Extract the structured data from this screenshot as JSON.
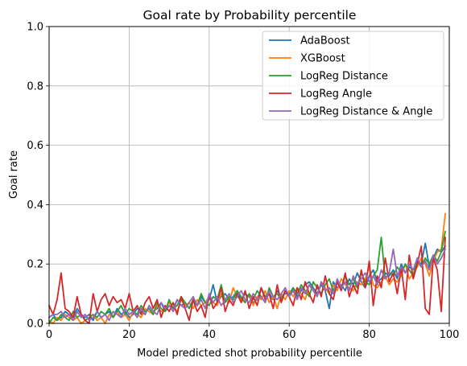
{
  "chart_data": {
    "type": "line",
    "title": "Goal rate by Probability percentile",
    "xlabel": "Model predicted shot probability percentile",
    "ylabel": "Goal rate",
    "xlim": [
      0,
      100
    ],
    "ylim": [
      0,
      1.0
    ],
    "xticks": [
      "0",
      "20",
      "40",
      "60",
      "80",
      "100"
    ],
    "yticks": [
      "0.0",
      "0.2",
      "0.4",
      "0.6",
      "0.8",
      "1.0"
    ],
    "grid": true,
    "legend_position": "top-right",
    "x": [
      0,
      1,
      2,
      3,
      4,
      5,
      6,
      7,
      8,
      9,
      10,
      11,
      12,
      13,
      14,
      15,
      16,
      17,
      18,
      19,
      20,
      21,
      22,
      23,
      24,
      25,
      26,
      27,
      28,
      29,
      30,
      31,
      32,
      33,
      34,
      35,
      36,
      37,
      38,
      39,
      40,
      41,
      42,
      43,
      44,
      45,
      46,
      47,
      48,
      49,
      50,
      51,
      52,
      53,
      54,
      55,
      56,
      57,
      58,
      59,
      60,
      61,
      62,
      63,
      64,
      65,
      66,
      67,
      68,
      69,
      70,
      71,
      72,
      73,
      74,
      75,
      76,
      77,
      78,
      79,
      80,
      81,
      82,
      83,
      84,
      85,
      86,
      87,
      88,
      89,
      90,
      91,
      92,
      93,
      94,
      95,
      96,
      97,
      98,
      99
    ],
    "series": [
      {
        "name": "AdaBoost",
        "color": "#1f77b4",
        "values": [
          0.02,
          0.03,
          0.01,
          0.02,
          0.04,
          0.03,
          0.02,
          0.05,
          0.03,
          0.02,
          0.03,
          0.01,
          0.04,
          0.02,
          0.03,
          0.04,
          0.02,
          0.05,
          0.03,
          0.04,
          0.02,
          0.03,
          0.05,
          0.04,
          0.03,
          0.06,
          0.04,
          0.05,
          0.07,
          0.04,
          0.06,
          0.05,
          0.08,
          0.06,
          0.07,
          0.05,
          0.08,
          0.06,
          0.09,
          0.07,
          0.08,
          0.13,
          0.07,
          0.09,
          0.1,
          0.08,
          0.09,
          0.11,
          0.08,
          0.1,
          0.09,
          0.07,
          0.08,
          0.12,
          0.09,
          0.1,
          0.08,
          0.11,
          0.09,
          0.1,
          0.1,
          0.12,
          0.09,
          0.11,
          0.13,
          0.14,
          0.12,
          0.1,
          0.13,
          0.11,
          0.05,
          0.14,
          0.12,
          0.13,
          0.11,
          0.15,
          0.13,
          0.17,
          0.14,
          0.12,
          0.16,
          0.18,
          0.14,
          0.15,
          0.17,
          0.16,
          0.18,
          0.15,
          0.2,
          0.17,
          0.19,
          0.18,
          0.21,
          0.2,
          0.27,
          0.19,
          0.22,
          0.25,
          0.24,
          0.26
        ]
      },
      {
        "name": "XGBoost",
        "color": "#ff7f0e",
        "values": [
          0.01,
          0.0,
          0.02,
          0.01,
          0.03,
          0.02,
          0.01,
          0.02,
          0.0,
          0.01,
          0.02,
          0.03,
          0.01,
          0.02,
          0.0,
          0.03,
          0.02,
          0.04,
          0.02,
          0.03,
          0.01,
          0.04,
          0.03,
          0.02,
          0.05,
          0.04,
          0.03,
          0.06,
          0.04,
          0.05,
          0.07,
          0.05,
          0.04,
          0.08,
          0.06,
          0.07,
          0.05,
          0.08,
          0.06,
          0.07,
          0.09,
          0.07,
          0.06,
          0.1,
          0.08,
          0.07,
          0.12,
          0.09,
          0.08,
          0.07,
          0.1,
          0.06,
          0.09,
          0.08,
          0.11,
          0.07,
          0.09,
          0.05,
          0.1,
          0.08,
          0.11,
          0.09,
          0.12,
          0.1,
          0.08,
          0.13,
          0.11,
          0.09,
          0.14,
          0.12,
          0.1,
          0.13,
          0.11,
          0.15,
          0.13,
          0.12,
          0.11,
          0.14,
          0.13,
          0.15,
          0.19,
          0.13,
          0.12,
          0.14,
          0.16,
          0.13,
          0.15,
          0.14,
          0.16,
          0.2,
          0.15,
          0.17,
          0.19,
          0.22,
          0.2,
          0.16,
          0.21,
          0.24,
          0.25,
          0.37
        ]
      },
      {
        "name": "LogReg Distance",
        "color": "#2ca02c",
        "values": [
          0.0,
          0.02,
          0.01,
          0.03,
          0.02,
          0.01,
          0.04,
          0.02,
          0.03,
          0.01,
          0.02,
          0.03,
          0.02,
          0.04,
          0.03,
          0.05,
          0.02,
          0.04,
          0.06,
          0.03,
          0.05,
          0.04,
          0.03,
          0.06,
          0.04,
          0.05,
          0.03,
          0.07,
          0.05,
          0.04,
          0.08,
          0.05,
          0.06,
          0.09,
          0.07,
          0.05,
          0.08,
          0.06,
          0.1,
          0.07,
          0.06,
          0.09,
          0.08,
          0.13,
          0.07,
          0.09,
          0.08,
          0.11,
          0.09,
          0.07,
          0.1,
          0.08,
          0.11,
          0.09,
          0.07,
          0.12,
          0.09,
          0.1,
          0.08,
          0.11,
          0.09,
          0.12,
          0.1,
          0.13,
          0.11,
          0.09,
          0.14,
          0.12,
          0.1,
          0.13,
          0.15,
          0.11,
          0.14,
          0.12,
          0.16,
          0.13,
          0.15,
          0.12,
          0.17,
          0.14,
          0.13,
          0.16,
          0.18,
          0.29,
          0.15,
          0.17,
          0.16,
          0.19,
          0.17,
          0.2,
          0.18,
          0.16,
          0.21,
          0.19,
          0.22,
          0.2,
          0.23,
          0.21,
          0.24,
          0.31
        ]
      },
      {
        "name": "LogReg Angle",
        "color": "#d62728",
        "values": [
          0.06,
          0.03,
          0.08,
          0.17,
          0.05,
          0.04,
          0.02,
          0.09,
          0.03,
          0.01,
          0.0,
          0.1,
          0.04,
          0.08,
          0.1,
          0.06,
          0.09,
          0.07,
          0.08,
          0.05,
          0.1,
          0.04,
          0.06,
          0.03,
          0.07,
          0.09,
          0.05,
          0.08,
          0.02,
          0.06,
          0.04,
          0.07,
          0.03,
          0.09,
          0.05,
          0.01,
          0.08,
          0.04,
          0.06,
          0.02,
          0.1,
          0.05,
          0.07,
          0.12,
          0.04,
          0.08,
          0.06,
          0.1,
          0.07,
          0.11,
          0.05,
          0.09,
          0.06,
          0.12,
          0.08,
          0.1,
          0.05,
          0.13,
          0.07,
          0.11,
          0.09,
          0.06,
          0.12,
          0.08,
          0.14,
          0.1,
          0.07,
          0.13,
          0.09,
          0.16,
          0.1,
          0.08,
          0.14,
          0.11,
          0.17,
          0.09,
          0.13,
          0.1,
          0.18,
          0.12,
          0.21,
          0.06,
          0.16,
          0.12,
          0.22,
          0.14,
          0.17,
          0.1,
          0.19,
          0.08,
          0.23,
          0.15,
          0.2,
          0.26,
          0.05,
          0.03,
          0.22,
          0.18,
          0.04,
          0.29
        ]
      },
      {
        "name": "LogReg Distance & Angle",
        "color": "#9467bd",
        "values": [
          0.02,
          0.03,
          0.03,
          0.04,
          0.02,
          0.03,
          0.01,
          0.04,
          0.02,
          0.03,
          0.01,
          0.02,
          0.04,
          0.02,
          0.03,
          0.01,
          0.04,
          0.03,
          0.02,
          0.05,
          0.03,
          0.04,
          0.02,
          0.05,
          0.03,
          0.06,
          0.04,
          0.03,
          0.07,
          0.05,
          0.06,
          0.04,
          0.08,
          0.06,
          0.05,
          0.07,
          0.09,
          0.06,
          0.08,
          0.05,
          0.1,
          0.07,
          0.09,
          0.06,
          0.08,
          0.1,
          0.07,
          0.09,
          0.11,
          0.08,
          0.07,
          0.1,
          0.08,
          0.09,
          0.07,
          0.11,
          0.09,
          0.08,
          0.1,
          0.12,
          0.09,
          0.11,
          0.08,
          0.12,
          0.1,
          0.13,
          0.11,
          0.09,
          0.14,
          0.11,
          0.12,
          0.1,
          0.15,
          0.12,
          0.14,
          0.11,
          0.16,
          0.13,
          0.15,
          0.17,
          0.14,
          0.16,
          0.13,
          0.18,
          0.15,
          0.17,
          0.25,
          0.16,
          0.19,
          0.17,
          0.2,
          0.18,
          0.22,
          0.19,
          0.21,
          0.18,
          0.23,
          0.2,
          0.22,
          0.25
        ]
      }
    ]
  }
}
